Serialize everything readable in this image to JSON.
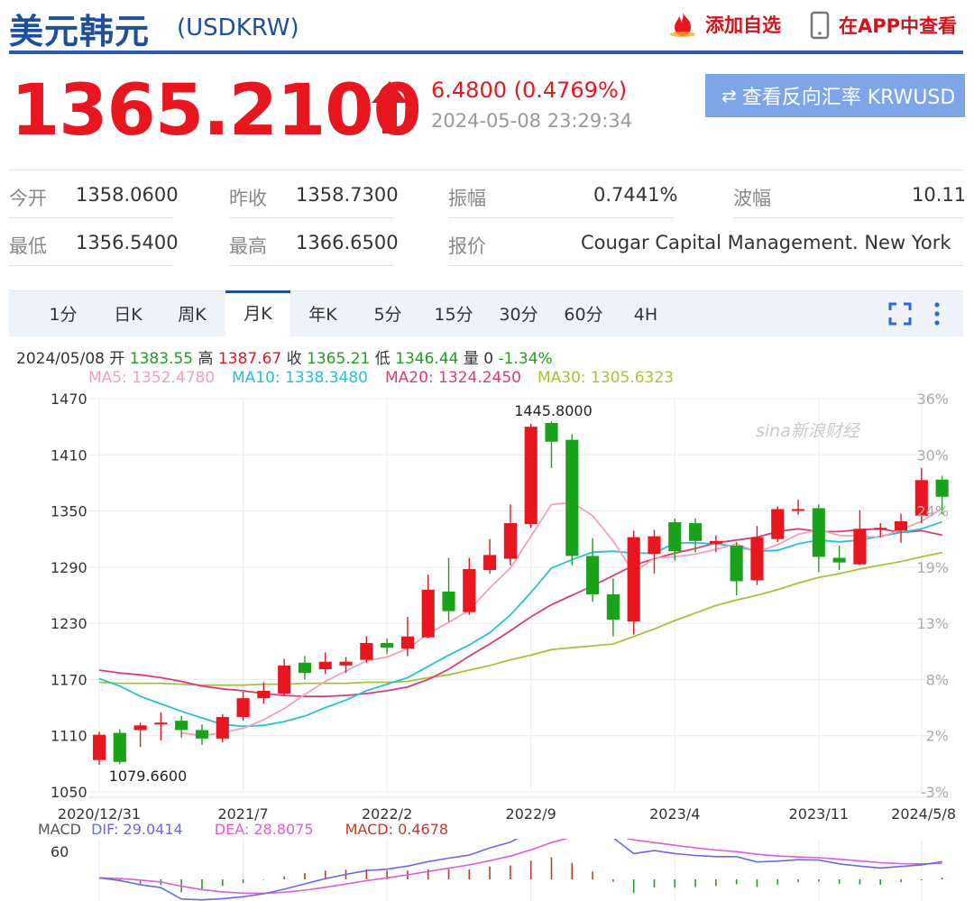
{
  "header": {
    "name": "美元韩元",
    "code": "(USDKRW)",
    "add_watchlist": "添加自选",
    "view_in_app": "在APP中查看"
  },
  "quote": {
    "price": "1365.2100",
    "change": "6.4800 (0.4769%)",
    "time": "2024-05-08 23:29:34",
    "reverse_button": "查看反向汇率 KRWUSD"
  },
  "stats": {
    "open_label": "今开",
    "open": "1358.0600",
    "prev_close_label": "昨收",
    "prev_close": "1358.7300",
    "amplitude_label": "振幅",
    "amplitude": "0.7441%",
    "wave_label": "波幅",
    "wave": "10.11",
    "low_label": "最低",
    "low": "1356.5400",
    "high_label": "最高",
    "high": "1366.6500",
    "quote_label": "报价",
    "quote_source": "Cougar Capital Management. New York"
  },
  "tabs": [
    "1分",
    "日K",
    "周K",
    "月K",
    "年K",
    "5分",
    "15分",
    "30分",
    "60分",
    "4H"
  ],
  "active_tab": "月K",
  "info": {
    "date": "2024/05/08",
    "open_label": "开",
    "open": "1383.55",
    "high_label": "高",
    "high": "1387.67",
    "close_label": "收",
    "close": "1365.21",
    "low_label": "低",
    "low": "1346.44",
    "vol_label": "量",
    "vol": "0",
    "pct": "-1.34%"
  },
  "ma_labels": {
    "ma5": "MA5: 1352.4780",
    "ma10": "MA10: 1338.3480",
    "ma20": "MA20: 1324.2450",
    "ma30": "MA30: 1305.6323"
  },
  "watermark": "sina新浪财经",
  "colors": {
    "up": "#e8161f",
    "down": "#1aa31a",
    "ma5": "#f39fbd",
    "ma10": "#27c1d6",
    "ma20": "#e03a76",
    "ma30": "#a7c23a",
    "dif": "#6b67f0",
    "dea": "#e05ae0",
    "brand": "#1f4e9c"
  },
  "chart_data": {
    "type": "candlestick",
    "y_ticks": [
      1470,
      1410,
      1350,
      1290,
      1230,
      1170,
      1110,
      1050
    ],
    "ylim": [
      1050,
      1470
    ],
    "pct_ticks": [
      "36%",
      "30%",
      "24%",
      "19%",
      "13%",
      "8%",
      "2%",
      "-3%"
    ],
    "x_labels": [
      "2020/12/31",
      "2021/7",
      "2022/2",
      "2022/9",
      "2023/4",
      "2023/11",
      "2024/5/8"
    ],
    "x_label_index": [
      0,
      7,
      14,
      21,
      28,
      35,
      40
    ],
    "max_label": "1445.8000",
    "min_label": "1079.6600",
    "candles": [
      {
        "o": 1084,
        "c": 1111,
        "h": 1114,
        "l": 1079
      },
      {
        "o": 1113,
        "c": 1082,
        "h": 1117,
        "l": 1079.66
      },
      {
        "o": 1116,
        "c": 1121,
        "h": 1124,
        "l": 1098
      },
      {
        "o": 1122,
        "c": 1124,
        "h": 1135,
        "l": 1105
      },
      {
        "o": 1126,
        "c": 1116,
        "h": 1131,
        "l": 1108
      },
      {
        "o": 1116,
        "c": 1107,
        "h": 1122,
        "l": 1100
      },
      {
        "o": 1107,
        "c": 1130,
        "h": 1133,
        "l": 1103
      },
      {
        "o": 1130,
        "c": 1150,
        "h": 1157,
        "l": 1126
      },
      {
        "o": 1150,
        "c": 1158,
        "h": 1167,
        "l": 1144
      },
      {
        "o": 1155,
        "c": 1185,
        "h": 1192,
        "l": 1152
      },
      {
        "o": 1188,
        "c": 1177,
        "h": 1195,
        "l": 1170
      },
      {
        "o": 1181,
        "c": 1189,
        "h": 1199,
        "l": 1176
      },
      {
        "o": 1185,
        "c": 1189,
        "h": 1194,
        "l": 1177
      },
      {
        "o": 1191,
        "c": 1209,
        "h": 1216,
        "l": 1188
      },
      {
        "o": 1209,
        "c": 1204,
        "h": 1214,
        "l": 1197
      },
      {
        "o": 1203,
        "c": 1216,
        "h": 1237,
        "l": 1195
      },
      {
        "o": 1215,
        "c": 1266,
        "h": 1282,
        "l": 1214
      },
      {
        "o": 1264,
        "c": 1243,
        "h": 1300,
        "l": 1232
      },
      {
        "o": 1242,
        "c": 1288,
        "h": 1300,
        "l": 1239
      },
      {
        "o": 1287,
        "c": 1303,
        "h": 1320,
        "l": 1283
      },
      {
        "o": 1299,
        "c": 1337,
        "h": 1357,
        "l": 1292
      },
      {
        "o": 1336,
        "c": 1440,
        "h": 1443,
        "l": 1332
      },
      {
        "o": 1444,
        "c": 1424,
        "h": 1445.8,
        "l": 1396
      },
      {
        "o": 1426,
        "c": 1302,
        "h": 1432,
        "l": 1292
      },
      {
        "o": 1302,
        "c": 1261,
        "h": 1321,
        "l": 1253
      },
      {
        "o": 1261,
        "c": 1234,
        "h": 1278,
        "l": 1216
      },
      {
        "o": 1232,
        "c": 1322,
        "h": 1329,
        "l": 1218
      },
      {
        "o": 1304,
        "c": 1323,
        "h": 1330,
        "l": 1283
      },
      {
        "o": 1338,
        "c": 1307,
        "h": 1342,
        "l": 1297
      },
      {
        "o": 1337,
        "c": 1318,
        "h": 1342,
        "l": 1306
      },
      {
        "o": 1315,
        "c": 1318,
        "h": 1324,
        "l": 1306
      },
      {
        "o": 1313,
        "c": 1275,
        "h": 1317,
        "l": 1260
      },
      {
        "o": 1276,
        "c": 1322,
        "h": 1334,
        "l": 1271
      },
      {
        "o": 1320,
        "c": 1352,
        "h": 1355,
        "l": 1317
      },
      {
        "o": 1352,
        "c": 1352,
        "h": 1362,
        "l": 1346
      },
      {
        "o": 1353,
        "c": 1301,
        "h": 1357,
        "l": 1285
      },
      {
        "o": 1300,
        "c": 1295,
        "h": 1313,
        "l": 1287
      },
      {
        "o": 1293,
        "c": 1331,
        "h": 1351,
        "l": 1292
      },
      {
        "o": 1331,
        "c": 1332,
        "h": 1337,
        "l": 1322
      },
      {
        "o": 1329,
        "c": 1339,
        "h": 1347,
        "l": 1316
      },
      {
        "o": 1345,
        "c": 1383,
        "h": 1396,
        "l": 1337
      },
      {
        "o": 1383.55,
        "c": 1365.21,
        "h": 1387.67,
        "l": 1346.44
      }
    ],
    "ma5": [
      null,
      null,
      null,
      null,
      1113,
      1110,
      1113,
      1118,
      1127,
      1139,
      1154,
      1168,
      1179,
      1190,
      1194,
      1203,
      1219,
      1231,
      1244,
      1268,
      1289,
      1323,
      1357,
      1359,
      1345,
      1318,
      1284,
      1300,
      1301,
      1304,
      1309,
      1315,
      1306,
      1314,
      1325,
      1330,
      1324,
      1323,
      1322,
      1330,
      1339,
      1352.478
    ],
    "ma10": [
      1171,
      1163,
      1152,
      1144,
      1136,
      1129,
      1122,
      1120,
      1121,
      1125,
      1131,
      1140,
      1148,
      1158,
      1165,
      1172,
      1184,
      1196,
      1207,
      1220,
      1239,
      1263,
      1289,
      1298,
      1306,
      1307,
      1305,
      1305,
      1316,
      1316,
      1315,
      1312,
      1307,
      1308,
      1315,
      1319,
      1317,
      1319,
      1323,
      1327,
      1331,
      1338.348
    ],
    "ma20": [
      1180,
      1177,
      1175,
      1172,
      1168,
      1163,
      1160,
      1158,
      1155,
      1153,
      1152,
      1152,
      1153,
      1155,
      1158,
      1162,
      1170,
      1181,
      1195,
      1208,
      1222,
      1237,
      1250,
      1260,
      1270,
      1281,
      1292,
      1299,
      1305,
      1310,
      1316,
      1319,
      1322,
      1328,
      1331,
      1328,
      1328,
      1330,
      1331,
      1327,
      1329,
      1324.245
    ],
    "ma30": [
      1167,
      1166,
      1166,
      1166,
      1165,
      1164,
      1164,
      1164,
      1165,
      1165,
      1166,
      1166,
      1166,
      1167,
      1167,
      1168,
      1172,
      1175,
      1180,
      1185,
      1191,
      1196,
      1202,
      1204,
      1206,
      1208,
      1216,
      1224,
      1233,
      1241,
      1249,
      1255,
      1260,
      1266,
      1273,
      1279,
      1283,
      1288,
      1292,
      1296,
      1301,
      1305.6323
    ]
  },
  "macd": {
    "label": "MACD",
    "dif": "DIF: 29.0414",
    "dea": "DEA: 28.8075",
    "macd": "MACD: 0.4678",
    "tick": "60"
  }
}
